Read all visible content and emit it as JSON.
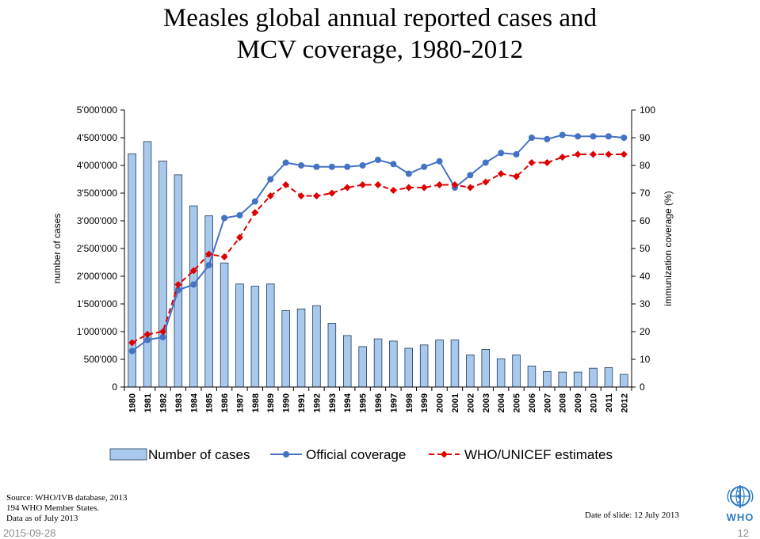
{
  "title_line1": "Measles global annual reported cases and",
  "title_line2": "MCV coverage, 1980-2012",
  "chart_data": {
    "type": "bar",
    "categories": [
      "1980",
      "1981",
      "1982",
      "1983",
      "1984",
      "1985",
      "1986",
      "1987",
      "1988",
      "1989",
      "1990",
      "1991",
      "1992",
      "1993",
      "1994",
      "1995",
      "1996",
      "1997",
      "1998",
      "1999",
      "2000",
      "2001",
      "2002",
      "2003",
      "2004",
      "2005",
      "2006",
      "2007",
      "2008",
      "2009",
      "2010",
      "2011",
      "2012"
    ],
    "ylabel_left": "number of cases",
    "ylabel_right": "immunization coverage (%)",
    "ylim_left": [
      0,
      5000000
    ],
    "ylim_right": [
      0,
      100
    ],
    "yticks_left": [
      "0",
      "500'000",
      "1'000'000",
      "1'500'000",
      "2'000'000",
      "2'500'000",
      "3'000'000",
      "3'500'000",
      "4'000'000",
      "4'500'000",
      "5'000'000"
    ],
    "yticks_right": [
      "0",
      "10",
      "20",
      "30",
      "40",
      "50",
      "60",
      "70",
      "80",
      "90",
      "100"
    ],
    "legend_position": "bottom",
    "grid": false,
    "series": [
      {
        "name": "Number of cases",
        "type": "bar",
        "axis": "left",
        "color": "#a9c9ec",
        "values": [
          4210000,
          4430000,
          4080000,
          3830000,
          3270000,
          3090000,
          2240000,
          1860000,
          1820000,
          1860000,
          1380000,
          1410000,
          1470000,
          1150000,
          930000,
          730000,
          870000,
          830000,
          700000,
          760000,
          850000,
          850000,
          580000,
          680000,
          510000,
          580000,
          380000,
          280000,
          270000,
          270000,
          340000,
          350000,
          230000
        ]
      },
      {
        "name": "Official coverage",
        "type": "line",
        "axis": "right",
        "color": "#4472c4",
        "marker": "circle",
        "values": [
          13,
          17,
          18,
          35,
          37,
          44,
          61,
          62,
          67,
          75,
          81,
          80,
          79.5,
          79.5,
          79.5,
          80,
          82,
          80.5,
          77,
          79.5,
          81.5,
          72,
          76.5,
          81,
          84.5,
          84,
          90,
          89.5,
          91,
          90.5,
          90.5,
          90.5,
          90
        ]
      },
      {
        "name": "WHO/UNICEF estimates",
        "type": "line",
        "axis": "right",
        "color": "#dd0000",
        "marker": "diamond",
        "dashed": true,
        "values": [
          16,
          19,
          20,
          37,
          42,
          48,
          47,
          54,
          63,
          69,
          73,
          69,
          69,
          70,
          72,
          73,
          73,
          71,
          72,
          72,
          73,
          73,
          72,
          74,
          77,
          76,
          81,
          81,
          83,
          84,
          84,
          84,
          84
        ]
      }
    ]
  },
  "source_line1": "Source:  WHO/IVB database,  2013",
  "source_line2": "194 WHO Member States.",
  "source_line3": "Data as of July 2013",
  "date_of_slide": "Date of slide:  12 July 2013",
  "footer_date": "2015-09-28",
  "page_number": "12",
  "logo_text": "WHO"
}
